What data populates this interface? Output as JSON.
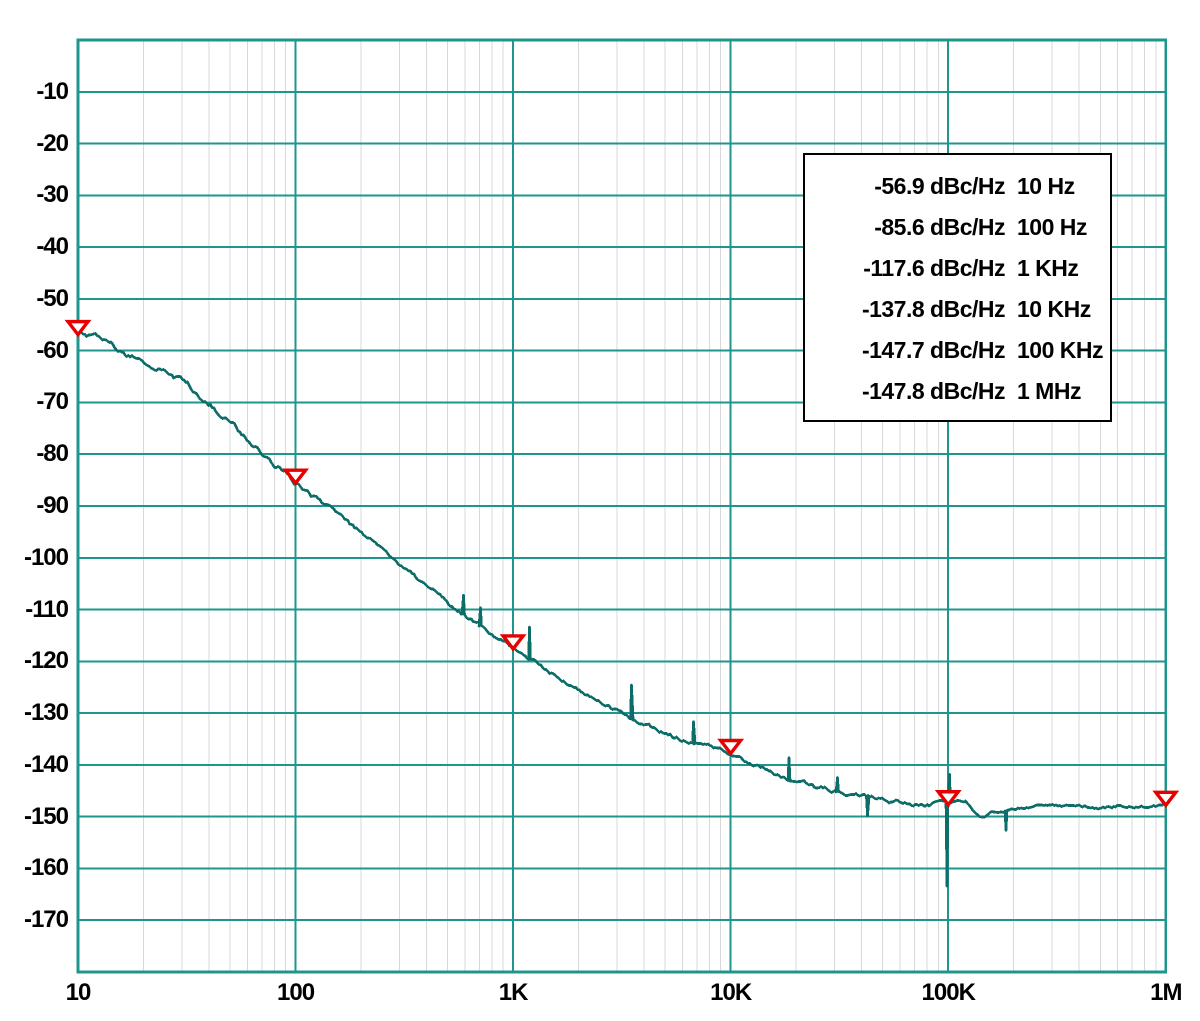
{
  "colors": {
    "background": "#ffffff",
    "grid_major": "#1e968e",
    "grid_minor": "#d8d8d8",
    "frame": "#1e968e",
    "curve": "#0d6e69",
    "marker_stroke": "#e80000",
    "marker_fill": "#ffffff",
    "text": "#000000"
  },
  "chart_data": {
    "type": "line",
    "title": "",
    "xlabel": "",
    "ylabel": "",
    "x_scale": "log",
    "xlim": [
      10,
      1000000
    ],
    "ylim": [
      0,
      -180
    ],
    "grid": "on",
    "legend_position": "upper-right",
    "x_ticks": [
      {
        "label": "10",
        "log10": 1
      },
      {
        "label": "100",
        "log10": 2
      },
      {
        "label": "1K",
        "log10": 3
      },
      {
        "label": "10K",
        "log10": 4
      },
      {
        "label": "100K",
        "log10": 5
      },
      {
        "label": "1M",
        "log10": 6
      }
    ],
    "y_ticks": [
      {
        "label": "-10",
        "value": -10
      },
      {
        "label": "-20",
        "value": -20
      },
      {
        "label": "-30",
        "value": -30
      },
      {
        "label": "-40",
        "value": -40
      },
      {
        "label": "-50",
        "value": -50
      },
      {
        "label": "-60",
        "value": -60
      },
      {
        "label": "-70",
        "value": -70
      },
      {
        "label": "-80",
        "value": -80
      },
      {
        "label": "-90",
        "value": -90
      },
      {
        "label": "-100",
        "value": -100
      },
      {
        "label": "-110",
        "value": -110
      },
      {
        "label": "-120",
        "value": -120
      },
      {
        "label": "-130",
        "value": -130
      },
      {
        "label": "-140",
        "value": -140
      },
      {
        "label": "-150",
        "value": -150
      },
      {
        "label": "-160",
        "value": -160
      },
      {
        "label": "-170",
        "value": -170
      }
    ],
    "series": [
      {
        "name": "phase_noise_dbc_per_hz",
        "anchors_log10hz_dbc": [
          [
            1.0,
            -56.4
          ],
          [
            1.05,
            -56.9
          ],
          [
            1.1,
            -57.7
          ],
          [
            1.15,
            -58.7
          ],
          [
            1.2,
            -59.7
          ],
          [
            1.25,
            -60.6
          ],
          [
            1.3,
            -61.6
          ],
          [
            1.38,
            -63.3
          ],
          [
            1.45,
            -65.1
          ],
          [
            1.5,
            -66.4
          ],
          [
            1.58,
            -69.0
          ],
          [
            1.65,
            -71.6
          ],
          [
            1.72,
            -74.3
          ],
          [
            1.78,
            -76.8
          ],
          [
            1.84,
            -79.2
          ],
          [
            1.9,
            -81.8
          ],
          [
            1.95,
            -83.5
          ],
          [
            2.0,
            -85.3
          ],
          [
            2.1,
            -88.6
          ],
          [
            2.2,
            -92.0
          ],
          [
            2.3,
            -95.4
          ],
          [
            2.4,
            -98.8
          ],
          [
            2.5,
            -102.1
          ],
          [
            2.6,
            -105.4
          ],
          [
            2.7,
            -108.6
          ],
          [
            2.8,
            -111.7
          ],
          [
            2.9,
            -114.7
          ],
          [
            3.0,
            -117.5
          ],
          [
            3.1,
            -120.4
          ],
          [
            3.2,
            -123.1
          ],
          [
            3.3,
            -125.6
          ],
          [
            3.4,
            -127.8
          ],
          [
            3.5,
            -129.9
          ],
          [
            3.6,
            -131.8
          ],
          [
            3.7,
            -133.6
          ],
          [
            3.8,
            -135.2
          ],
          [
            3.9,
            -136.7
          ],
          [
            4.0,
            -138.0
          ],
          [
            4.1,
            -140.0
          ],
          [
            4.2,
            -141.7
          ],
          [
            4.3,
            -143.2
          ],
          [
            4.4,
            -144.5
          ],
          [
            4.5,
            -145.5
          ],
          [
            4.6,
            -146.3
          ],
          [
            4.7,
            -146.9
          ],
          [
            4.8,
            -147.3
          ],
          [
            4.9,
            -147.5
          ],
          [
            5.0,
            -147.6
          ],
          [
            5.04,
            -146.5
          ],
          [
            5.08,
            -146.8
          ],
          [
            5.11,
            -148.2
          ],
          [
            5.14,
            -149.8
          ],
          [
            5.17,
            -150.2
          ],
          [
            5.2,
            -149.5
          ],
          [
            5.24,
            -149.3
          ],
          [
            5.3,
            -148.4
          ],
          [
            5.4,
            -148.2
          ],
          [
            5.5,
            -148.1
          ],
          [
            5.6,
            -148.0
          ],
          [
            5.7,
            -148.1
          ],
          [
            5.8,
            -147.9
          ],
          [
            5.9,
            -147.8
          ],
          [
            6.0,
            -147.6
          ]
        ],
        "spikes_log10hz_dbc": [
          [
            2.771,
            -107.2
          ],
          [
            2.849,
            -109.6
          ],
          [
            3.075,
            -113.4
          ],
          [
            3.545,
            -124.6
          ],
          [
            3.83,
            -131.6
          ],
          [
            4.268,
            -138.6
          ],
          [
            4.49,
            -142.4
          ],
          [
            4.63,
            -149.9
          ],
          [
            4.995,
            -163.4
          ],
          [
            5.005,
            -141.8
          ],
          [
            5.265,
            -152.7
          ]
        ]
      }
    ],
    "markers": [
      {
        "freq_hz": 10,
        "dbc_hz": -56.9
      },
      {
        "freq_hz": 100,
        "dbc_hz": -85.6
      },
      {
        "freq_hz": 1000,
        "dbc_hz": -117.6
      },
      {
        "freq_hz": 10000,
        "dbc_hz": -137.8
      },
      {
        "freq_hz": 100000,
        "dbc_hz": -147.7
      },
      {
        "freq_hz": 1000000,
        "dbc_hz": -147.8
      }
    ],
    "legend": {
      "rows": [
        {
          "level": "-56.9 dBc/Hz",
          "freq": "10 Hz"
        },
        {
          "level": "-85.6 dBc/Hz",
          "freq": "100 Hz"
        },
        {
          "level": "-117.6 dBc/Hz",
          "freq": "1 KHz"
        },
        {
          "level": "-137.8 dBc/Hz",
          "freq": "10 KHz"
        },
        {
          "level": "-147.7 dBc/Hz",
          "freq": "100 KHz"
        },
        {
          "level": "-147.8 dBc/Hz",
          "freq": "1 MHz"
        }
      ]
    }
  }
}
